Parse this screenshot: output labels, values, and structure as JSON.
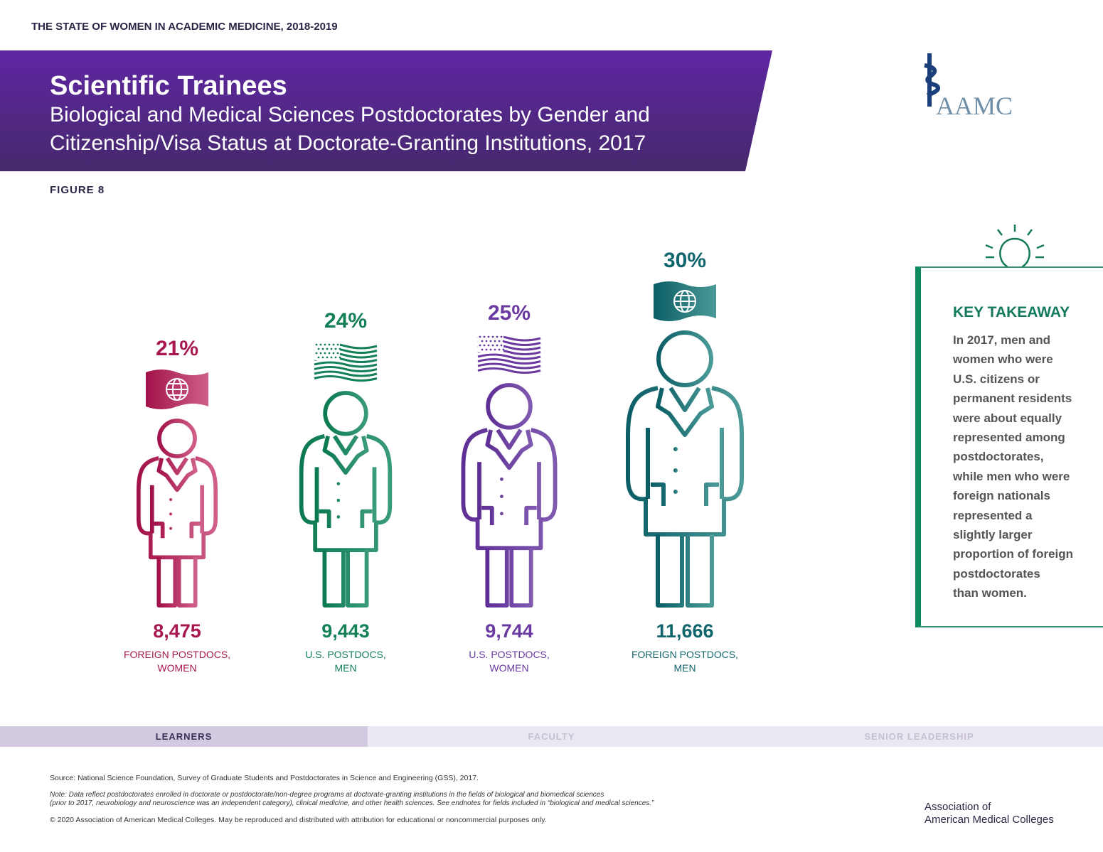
{
  "header": {
    "report": "THE STATE OF WOMEN IN ACADEMIC MEDICINE, 2018-2019",
    "title": "Scientific Trainees",
    "subtitle_lines": [
      "Biological and Medical Sciences Postdoctorates by Gender and",
      "Citizenship/Visa Status at Doctorate-Granting Institutions, 2017"
    ]
  },
  "logo": "AAMC",
  "figure_label": "FIGURE 8",
  "groups": [
    {
      "percent": "21%",
      "count": "8,475",
      "label_lines": [
        "FOREIGN POSTDOCS,",
        "WOMEN"
      ]
    },
    {
      "percent": "24%",
      "count": "9,443",
      "label_lines": [
        "U.S. POSTDOCS,",
        "MEN"
      ]
    },
    {
      "percent": "25%",
      "count": "9,744",
      "label_lines": [
        "U.S. POSTDOCS,",
        "WOMEN"
      ]
    },
    {
      "percent": "30%",
      "count": "11,666",
      "label_lines": [
        "FOREIGN POSTDOCS,",
        "MEN"
      ]
    }
  ],
  "takeaway": {
    "title": "KEY TAKEAWAY",
    "lines": [
      "In 2017, men and",
      "women who were",
      "U.S. citizens or",
      "permanent residents",
      "were about equally",
      "represented among",
      "postdoctorates,",
      "while men who were",
      "foreign nationals",
      "represented a",
      "slightly larger",
      "proportion of foreign",
      "postdoctorates",
      "than women."
    ]
  },
  "tabs": [
    "LEARNERS",
    "FACULTY",
    "SENIOR LEADERSHIP"
  ],
  "footer": {
    "source": "Source: National Science Foundation, Survey of Graduate Students and Postdoctorates in Science and Engineering (GSS), 2017.",
    "note_lines": [
      "Note: Data reflect postdoctorates enrolled in doctorate or postdoctorate/non-degree programs at doctorate-granting institutions in the fields of biological and biomedical sciences",
      "(prior to 2017, neurobiology and neuroscience was an independent category), clinical medicine, and other health sciences. See endnotes for fields included in “biological and medical sciences.”"
    ],
    "copyright": "© 2020 Association of American Medical Colleges. May be reproduced and distributed with attribution for educational or noncommercial purposes only.",
    "org_lines": [
      "Association of",
      "American Medical Colleges"
    ]
  }
}
